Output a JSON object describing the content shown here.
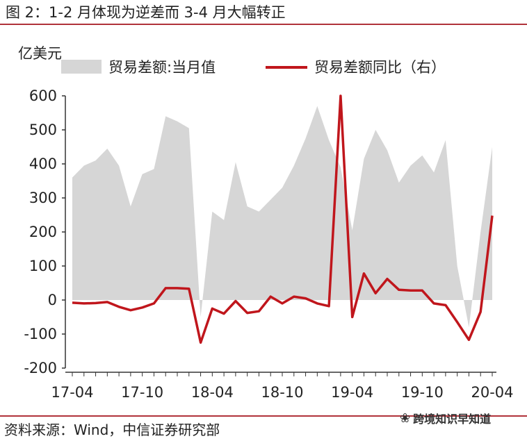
{
  "title": "图 2：1-2 月体现为逆差而 3-4 月大幅转正",
  "source": "资料来源：Wind，中信证券研究部",
  "watermark": "跨境知识早知道",
  "watermark_icon": "wechat-icon",
  "colors": {
    "area": "#d6d6d6",
    "line": "#c0161c",
    "rule": "#b0323a"
  },
  "chart_data": {
    "type": "area",
    "unit_label": "亿美元",
    "x_ticks": [
      "17-04",
      "17-10",
      "18-04",
      "18-10",
      "19-04",
      "19-10",
      "20-04"
    ],
    "x": [
      "17-04",
      "17-05",
      "17-06",
      "17-07",
      "17-08",
      "17-09",
      "17-10",
      "17-11",
      "17-12",
      "18-01",
      "18-02",
      "18-03",
      "18-04",
      "18-05",
      "18-06",
      "18-07",
      "18-08",
      "18-09",
      "18-10",
      "18-11",
      "18-12",
      "19-01",
      "19-02",
      "19-03",
      "19-04",
      "19-05",
      "19-06",
      "19-07",
      "19-08",
      "19-09",
      "19-10",
      "19-11",
      "19-12",
      "20-01",
      "20-02",
      "20-03",
      "20-04"
    ],
    "ylim": [
      -200,
      600
    ],
    "y_ticks": [
      -200,
      -100,
      0,
      100,
      200,
      300,
      400,
      500,
      600
    ],
    "legend_position": "top",
    "series": [
      {
        "name": "贸易差额:当月值",
        "type": "area",
        "values": [
          360,
          395,
          410,
          445,
          395,
          275,
          370,
          385,
          540,
          525,
          505,
          -50,
          260,
          235,
          405,
          275,
          260,
          295,
          330,
          395,
          475,
          570,
          470,
          390,
          205,
          415,
          500,
          440,
          345,
          395,
          425,
          375,
          470,
          100,
          -80,
          200,
          450
        ]
      },
      {
        "name": "贸易差额同比（右）",
        "type": "line",
        "values": [
          -8,
          -10,
          -9,
          -6,
          -20,
          -30,
          -22,
          -10,
          35,
          35,
          33,
          -125,
          -25,
          -40,
          -3,
          -38,
          -33,
          10,
          -10,
          10,
          5,
          -10,
          -18,
          600,
          -50,
          78,
          20,
          62,
          30,
          28,
          28,
          -10,
          -15,
          -65,
          -117,
          -35,
          248
        ]
      }
    ]
  }
}
